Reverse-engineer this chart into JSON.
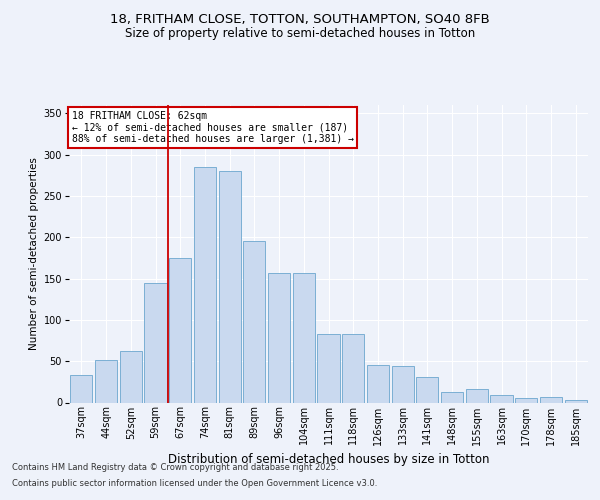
{
  "title_line1": "18, FRITHAM CLOSE, TOTTON, SOUTHAMPTON, SO40 8FB",
  "title_line2": "Size of property relative to semi-detached houses in Totton",
  "xlabel": "Distribution of semi-detached houses by size in Totton",
  "ylabel": "Number of semi-detached properties",
  "categories": [
    "37sqm",
    "44sqm",
    "52sqm",
    "59sqm",
    "67sqm",
    "74sqm",
    "81sqm",
    "89sqm",
    "96sqm",
    "104sqm",
    "111sqm",
    "118sqm",
    "126sqm",
    "133sqm",
    "141sqm",
    "148sqm",
    "155sqm",
    "163sqm",
    "170sqm",
    "178sqm",
    "185sqm"
  ],
  "values": [
    33,
    51,
    62,
    145,
    175,
    285,
    280,
    195,
    157,
    157,
    83,
    83,
    45,
    44,
    31,
    13,
    16,
    9,
    5,
    7,
    3
  ],
  "bar_color": "#c9d9ef",
  "bar_edge_color": "#7bafd4",
  "vline_color": "#cc0000",
  "vline_pos": 3.5,
  "annotation_title": "18 FRITHAM CLOSE: 62sqm",
  "annotation_line1": "← 12% of semi-detached houses are smaller (187)",
  "annotation_line2": "88% of semi-detached houses are larger (1,381) →",
  "annotation_box_color": "#cc0000",
  "ylim": [
    0,
    360
  ],
  "yticks": [
    0,
    50,
    100,
    150,
    200,
    250,
    300,
    350
  ],
  "footnote_line1": "Contains HM Land Registry data © Crown copyright and database right 2025.",
  "footnote_line2": "Contains public sector information licensed under the Open Government Licence v3.0.",
  "background_color": "#eef2fa",
  "grid_color": "#ffffff",
  "title1_fontsize": 9.5,
  "title2_fontsize": 8.5,
  "ylabel_fontsize": 7.5,
  "xlabel_fontsize": 8.5,
  "tick_fontsize": 7,
  "annotation_fontsize": 7,
  "footnote_fontsize": 6
}
